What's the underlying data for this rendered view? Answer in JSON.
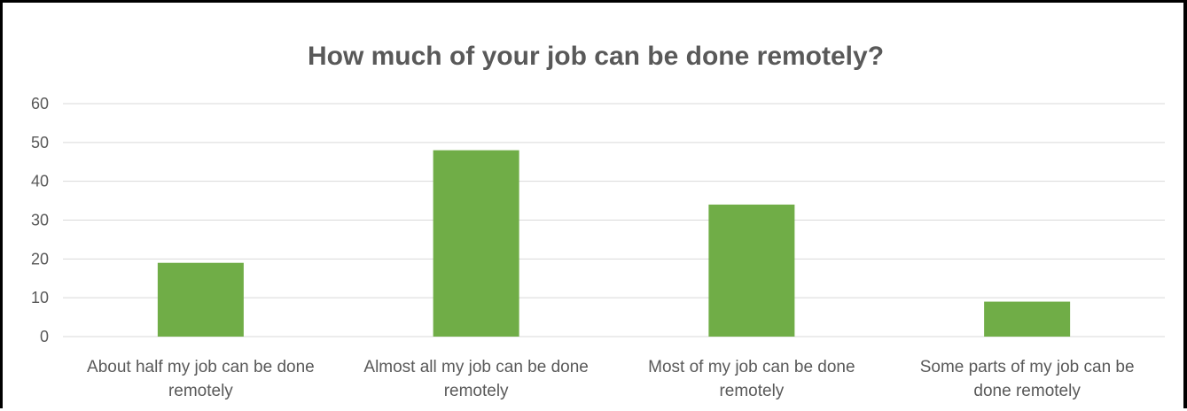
{
  "chart_data": {
    "type": "bar",
    "title": "How much of your job can be done remotely?",
    "xlabel": "",
    "ylabel": "",
    "categories": [
      [
        "About half my job can be done",
        "remotely"
      ],
      [
        "Almost all my job can be done",
        "remotely"
      ],
      [
        "Most of my job can be done",
        "remotely"
      ],
      [
        "Some parts of my job can be",
        "done remotely"
      ]
    ],
    "values": [
      19,
      48,
      34,
      9
    ],
    "ylim": [
      0,
      60
    ],
    "yticks": [
      0,
      10,
      20,
      30,
      40,
      50,
      60
    ],
    "grid": true,
    "legend": "none",
    "bar_color": "#70AD47",
    "grid_color": "#D9D9D9",
    "text_color": "#595959"
  }
}
